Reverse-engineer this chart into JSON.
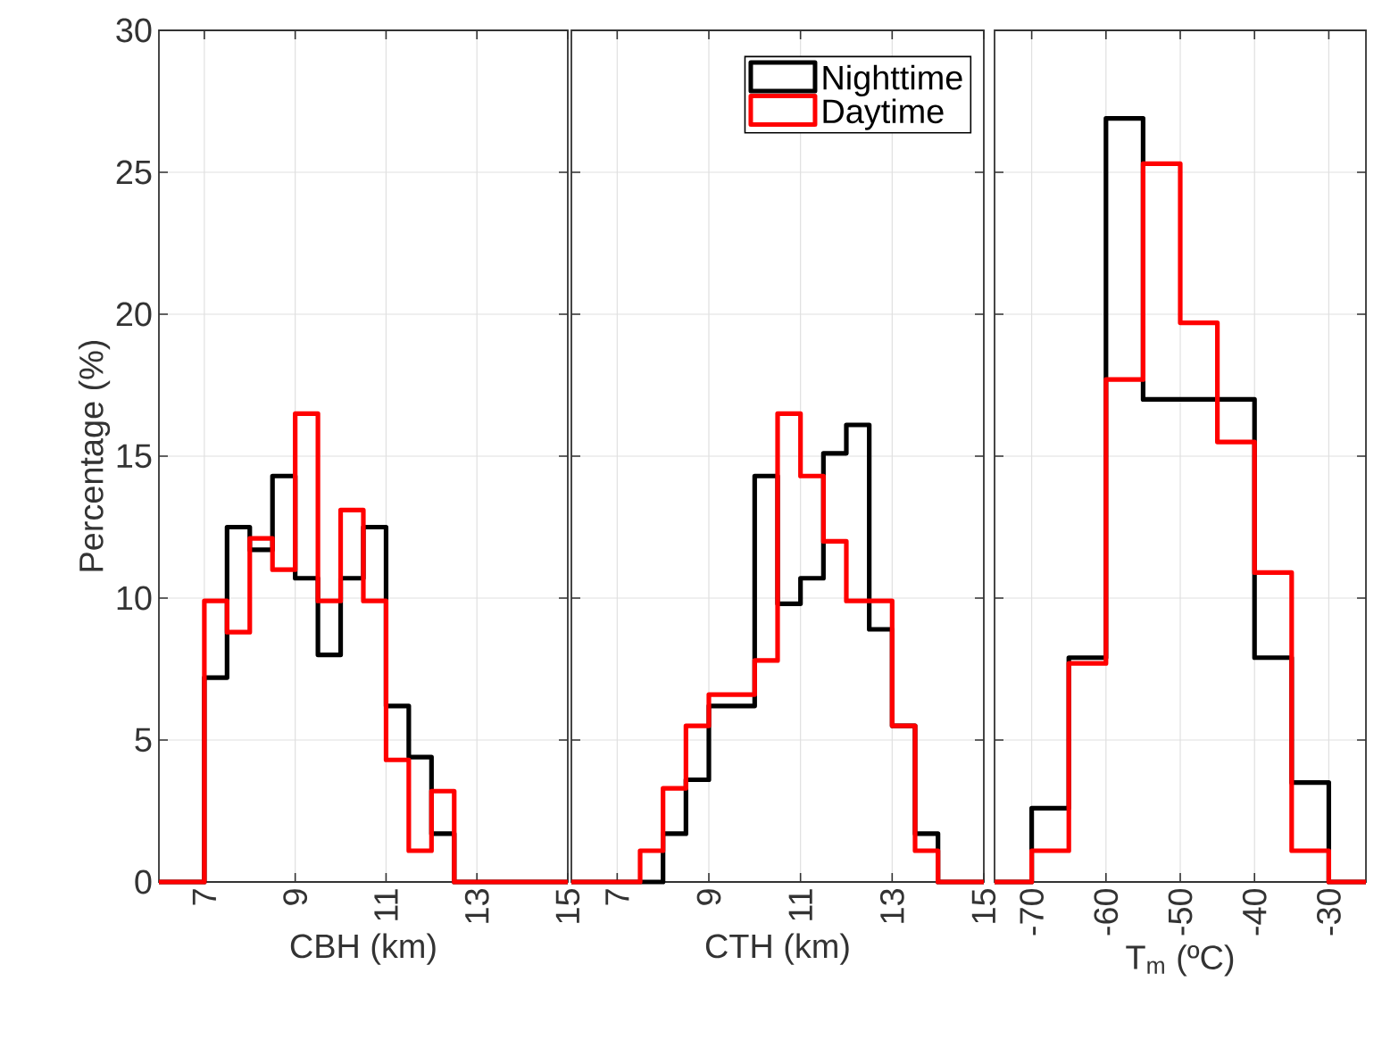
{
  "chart_data": [
    {
      "type": "histogram",
      "xlabel": "CBH (km)",
      "ylabel": "Percentage (%)",
      "bins": [
        6,
        6.5,
        7,
        7.5,
        8,
        8.5,
        9,
        9.5,
        10,
        10.5,
        11,
        11.5,
        12,
        12.5,
        13,
        13.5,
        14,
        14.5,
        15
      ],
      "series": [
        {
          "color": "#000000",
          "values": [
            0,
            0,
            7.2,
            12.5,
            11.7,
            14.3,
            10.7,
            8.0,
            10.7,
            12.5,
            6.2,
            4.4,
            1.7,
            0,
            0,
            0,
            0,
            0
          ]
        },
        {
          "color": "#ff0000",
          "values": [
            0,
            0,
            9.9,
            8.8,
            12.1,
            11.0,
            16.5,
            9.9,
            13.1,
            9.9,
            4.3,
            1.1,
            3.2,
            0,
            0,
            0,
            0,
            0
          ]
        }
      ],
      "xlim": [
        6,
        15
      ],
      "ylim": [
        0,
        30
      ],
      "xticks": [
        7,
        9,
        11,
        13,
        15
      ],
      "yticks": [
        0,
        5,
        10,
        15,
        20,
        25,
        30
      ],
      "grid": true
    },
    {
      "type": "histogram",
      "xlabel": "CTH (km)",
      "bins": [
        6,
        6.5,
        7,
        7.5,
        8,
        8.5,
        9,
        9.5,
        10,
        10.5,
        11,
        11.5,
        12,
        12.5,
        13,
        13.5,
        14,
        14.5,
        15
      ],
      "series": [
        {
          "name": "Nighttime",
          "color": "#000000",
          "values": [
            0,
            0,
            0,
            0,
            1.7,
            3.6,
            6.2,
            6.2,
            14.3,
            9.8,
            10.7,
            15.1,
            16.1,
            8.9,
            5.5,
            1.7,
            0,
            0
          ]
        },
        {
          "name": "Daytime",
          "color": "#ff0000",
          "values": [
            0,
            0,
            0,
            1.1,
            3.3,
            5.5,
            6.6,
            6.6,
            7.8,
            16.5,
            14.3,
            12.0,
            9.9,
            9.9,
            5.5,
            1.1,
            0,
            0
          ]
        }
      ],
      "xlim": [
        6,
        15
      ],
      "ylim": [
        0,
        30
      ],
      "xticks": [
        7,
        9,
        11,
        13,
        15
      ],
      "yticks": [
        0,
        5,
        10,
        15,
        20,
        25,
        30
      ],
      "grid": true,
      "legend": "top right",
      "tick_labels": "x"
    },
    {
      "type": "histogram",
      "xlabel": "T$_{m}$ (ºC)",
      "bins": [
        -75,
        -70,
        -65,
        -60,
        -55,
        -50,
        -45,
        -40,
        -35,
        -30,
        -25
      ],
      "series": [
        {
          "color": "#000000",
          "values": [
            0,
            2.6,
            7.9,
            26.9,
            17.0,
            17.0,
            17.0,
            7.9,
            3.5,
            0
          ]
        },
        {
          "color": "#ff0000",
          "values": [
            0,
            1.1,
            7.7,
            17.7,
            25.3,
            19.7,
            15.5,
            10.9,
            1.1,
            0
          ]
        }
      ],
      "xlim": [
        -75,
        -25
      ],
      "ylim": [
        0,
        30
      ],
      "xticks": [
        -70,
        -60,
        -50,
        -40,
        -30
      ],
      "yticks": [
        0,
        5,
        10,
        15,
        20,
        25,
        30
      ],
      "grid": true,
      "tick_labels": "x"
    }
  ]
}
